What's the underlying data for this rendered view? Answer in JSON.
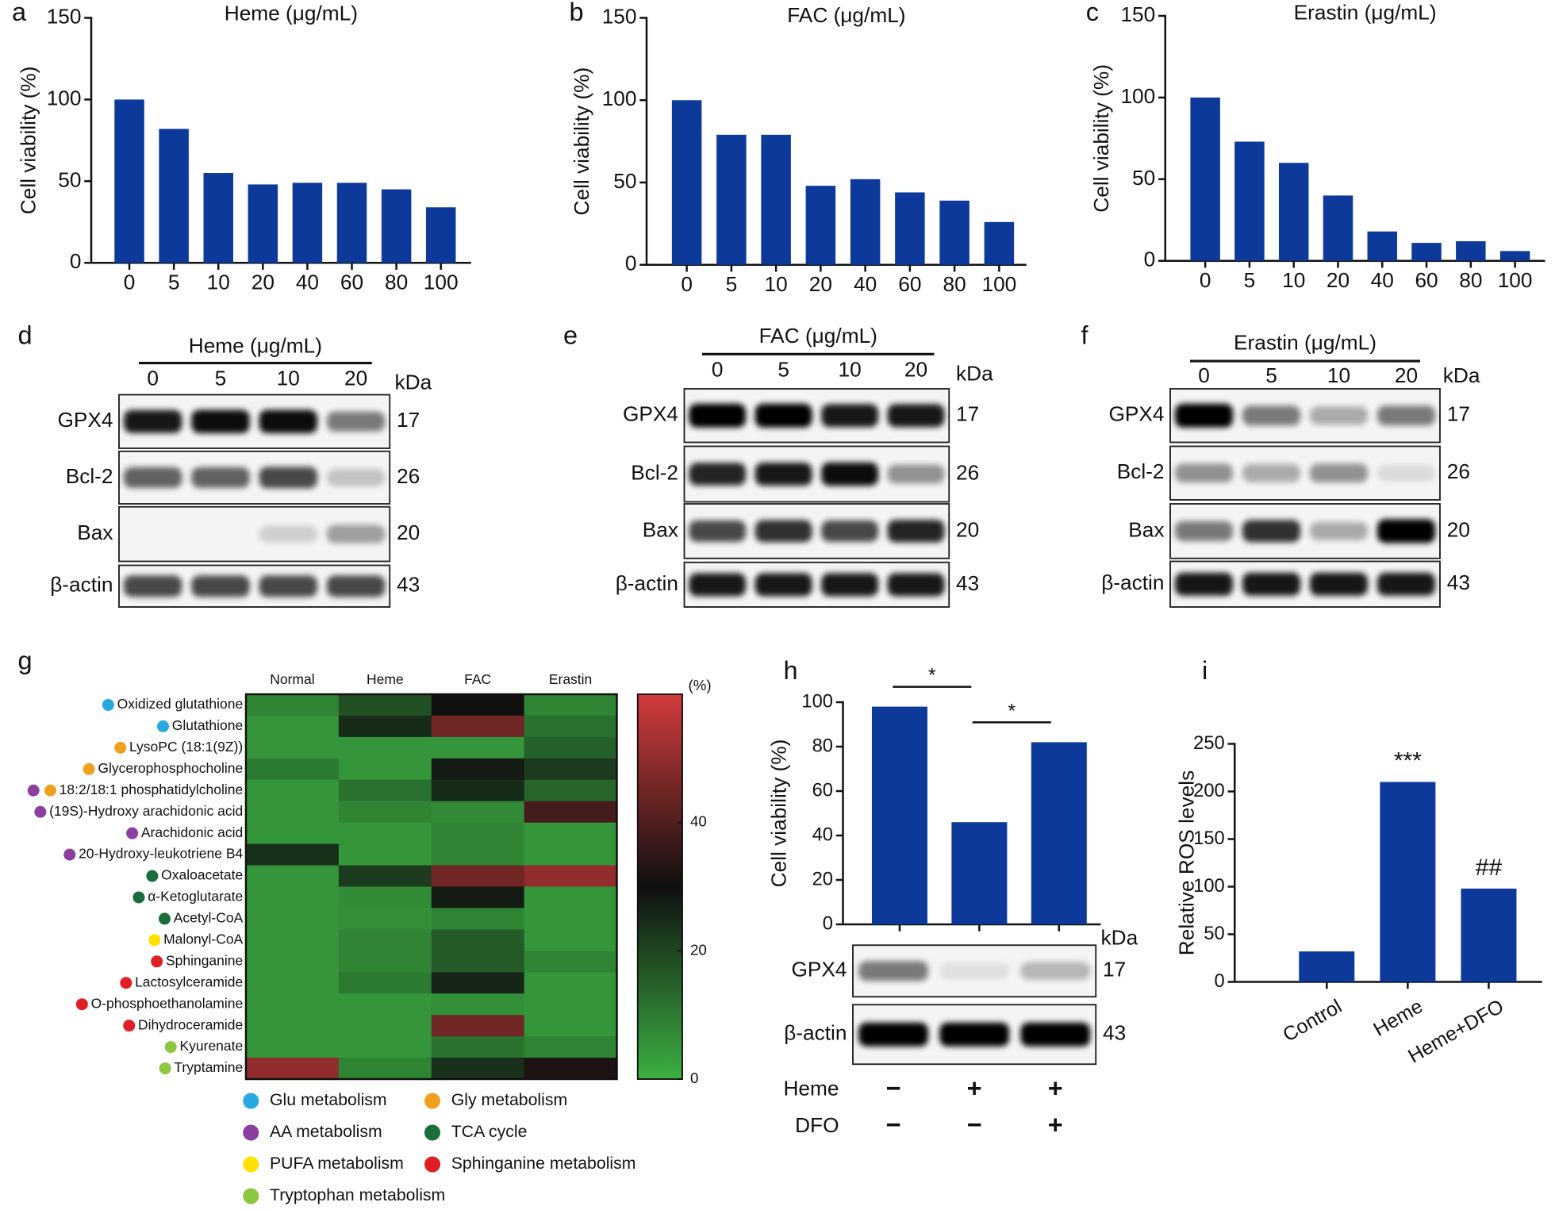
{
  "chart_data": [
    {
      "type": "bar",
      "panel": "a",
      "title": "Heme (μg/mL)",
      "y_label": "Cell viability (%)",
      "categories": [
        "0",
        "5",
        "10",
        "20",
        "40",
        "60",
        "80",
        "100"
      ],
      "values": [
        100,
        82,
        55,
        48,
        49,
        49,
        45,
        34
      ],
      "color": "#0d3a9a",
      "ylim": [
        0,
        150
      ],
      "yticks": [
        0,
        50,
        100,
        150
      ]
    },
    {
      "type": "bar",
      "panel": "b",
      "title": "FAC (μg/mL)",
      "y_label": "Cell viability (%)",
      "categories": [
        "0",
        "5",
        "10",
        "20",
        "40",
        "60",
        "80",
        "100"
      ],
      "values": [
        100,
        79,
        79,
        48,
        52,
        44,
        39,
        26
      ],
      "color": "#0d3a9a",
      "ylim": [
        0,
        150
      ],
      "yticks": [
        0,
        50,
        100,
        150
      ]
    },
    {
      "type": "bar",
      "panel": "c",
      "title": "Erastin (μg/mL)",
      "y_label": "Cell viability (%)",
      "categories": [
        "0",
        "5",
        "10",
        "20",
        "40",
        "60",
        "80",
        "100"
      ],
      "values": [
        100,
        73,
        60,
        40,
        18,
        11,
        12,
        6
      ],
      "color": "#0d3a9a",
      "ylim": [
        0,
        150
      ],
      "yticks": [
        0,
        50,
        100,
        150
      ]
    },
    {
      "type": "heatmap",
      "panel": "g",
      "columns": [
        "Normal",
        "Heme",
        "FAC",
        "Erastin"
      ],
      "rows": [
        {
          "label": "Oxidized glutathione",
          "dot_colors": [
            "#29a8e0"
          ],
          "values": [
            8,
            18,
            30,
            8
          ]
        },
        {
          "label": "Glutathione",
          "dot_colors": [
            "#29a8e0"
          ],
          "values": [
            5,
            25,
            45,
            12
          ]
        },
        {
          "label": "LysoPC (18:1(9Z))",
          "dot_colors": [
            "#f0a020"
          ],
          "values": [
            5,
            5,
            5,
            15
          ]
        },
        {
          "label": "Glycerophosphocholine",
          "dot_colors": [
            "#f0a020"
          ],
          "values": [
            10,
            5,
            28,
            22
          ]
        },
        {
          "label": "18:2/18:1 phosphatidylcholine",
          "dot_colors": [
            "#f0a020",
            "#8b3fa0"
          ],
          "values": [
            5,
            12,
            25,
            14
          ]
        },
        {
          "label": "(19S)-Hydroxy arachidonic acid",
          "dot_colors": [
            "#8b3fa0"
          ],
          "values": [
            5,
            8,
            7,
            38
          ]
        },
        {
          "label": "Arachidonic acid",
          "dot_colors": [
            "#8b3fa0"
          ],
          "values": [
            5,
            5,
            8,
            5
          ]
        },
        {
          "label": "20-Hydroxy-leukotriene B4",
          "dot_colors": [
            "#8b3fa0"
          ],
          "values": [
            24,
            5,
            8,
            5
          ]
        },
        {
          "label": "Oxaloacetate",
          "dot_colors": [
            "#1a6e3c"
          ],
          "values": [
            5,
            22,
            45,
            50
          ]
        },
        {
          "label": "α-Ketoglutarate",
          "dot_colors": [
            "#1a6e3c"
          ],
          "values": [
            5,
            7,
            28,
            5
          ]
        },
        {
          "label": "Acetyl-CoA",
          "dot_colors": [
            "#1a6e3c"
          ],
          "values": [
            5,
            6,
            8,
            5
          ]
        },
        {
          "label": "Malonyl-CoA",
          "dot_colors": [
            "#ffe000"
          ],
          "values": [
            5,
            8,
            16,
            5
          ]
        },
        {
          "label": "Sphinganine",
          "dot_colors": [
            "#e01e25"
          ],
          "values": [
            5,
            8,
            16,
            8
          ]
        },
        {
          "label": "Lactosylceramide",
          "dot_colors": [
            "#e01e25"
          ],
          "values": [
            5,
            10,
            26,
            5
          ]
        },
        {
          "label": "O-phosphoethanolamine",
          "dot_colors": [
            "#e01e25"
          ],
          "values": [
            5,
            5,
            6,
            5
          ]
        },
        {
          "label": "Dihydroceramide",
          "dot_colors": [
            "#e01e25"
          ],
          "values": [
            5,
            5,
            45,
            5
          ]
        },
        {
          "label": "Kyurenate",
          "dot_colors": [
            "#8dc63f"
          ],
          "values": [
            5,
            5,
            12,
            8
          ]
        },
        {
          "label": "Tryptamine",
          "dot_colors": [
            "#8dc63f"
          ],
          "values": [
            50,
            8,
            24,
            32
          ]
        }
      ],
      "zlim": [
        0,
        60
      ],
      "zticks": [
        0,
        20,
        40
      ],
      "z_label": "(%)",
      "colors": [
        "#3cb043",
        "#101010",
        "#d23c3c"
      ],
      "legend": [
        {
          "name": "Glu metabolism",
          "color": "#29a8e0"
        },
        {
          "name": "Gly metabolism",
          "color": "#f0a020"
        },
        {
          "name": "AA metabolism",
          "color": "#8b3fa0"
        },
        {
          "name": "TCA cycle",
          "color": "#1a6e3c"
        },
        {
          "name": "PUFA metabolism",
          "color": "#ffe000"
        },
        {
          "name": "Sphinganine metabolism",
          "color": "#e01e25"
        },
        {
          "name": "Tryptophan metabolism",
          "color": "#8dc63f"
        }
      ]
    },
    {
      "type": "bar",
      "panel": "h",
      "y_label": "Cell viability (%)",
      "categories": [
        null,
        null,
        null
      ],
      "values": [
        98,
        46,
        82
      ],
      "significance": [
        "*",
        "*"
      ],
      "color": "#0d3a9a",
      "ylim": [
        0,
        100
      ],
      "yticks": [
        0,
        20,
        40,
        60,
        80,
        100
      ]
    },
    {
      "type": "bar",
      "panel": "i",
      "y_label": "Relative ROS levels",
      "categories": [
        "Control",
        "Heme",
        "Heme+DFO"
      ],
      "values": [
        32,
        210,
        98
      ],
      "bar_labels": [
        null,
        "***",
        "##"
      ],
      "color": "#0d3a9a",
      "ylim": [
        0,
        250
      ],
      "yticks": [
        0,
        50,
        100,
        150,
        200,
        250
      ]
    }
  ],
  "blots": [
    {
      "panel": "d",
      "title": "Heme (μg/mL)",
      "lanes": [
        "0",
        "5",
        "10",
        "20"
      ],
      "unit": "kDa",
      "rows": [
        {
          "protein": "GPX4",
          "kda": 17
        },
        {
          "protein": "Bcl-2",
          "kda": 26
        },
        {
          "protein": "Bax",
          "kda": 20
        },
        {
          "protein": "β-actin",
          "kda": 43
        }
      ]
    },
    {
      "panel": "e",
      "title": "FAC (μg/mL)",
      "lanes": [
        "0",
        "5",
        "10",
        "20"
      ],
      "unit": "kDa",
      "rows": [
        {
          "protein": "GPX4",
          "kda": 17
        },
        {
          "protein": "Bcl-2",
          "kda": 26
        },
        {
          "protein": "Bax",
          "kda": 20
        },
        {
          "protein": "β-actin",
          "kda": 43
        }
      ]
    },
    {
      "panel": "f",
      "title": "Erastin (μg/mL)",
      "lanes": [
        "0",
        "5",
        "10",
        "20"
      ],
      "unit": "kDa",
      "rows": [
        {
          "protein": "GPX4",
          "kda": 17
        },
        {
          "protein": "Bcl-2",
          "kda": 26
        },
        {
          "protein": "Bax",
          "kda": 20
        },
        {
          "protein": "β-actin",
          "kda": 43
        }
      ]
    },
    {
      "unit": "kDa",
      "rows": [
        {
          "protein": "GPX4",
          "kda": 17
        },
        {
          "protein": "β-actin",
          "kda": 43
        }
      ]
    }
  ],
  "treatments": [
    {
      "name": "Heme",
      "signs": [
        "−",
        "+",
        "+"
      ]
    },
    {
      "name": "DFO",
      "signs": [
        "−",
        "−",
        "+"
      ]
    }
  ]
}
